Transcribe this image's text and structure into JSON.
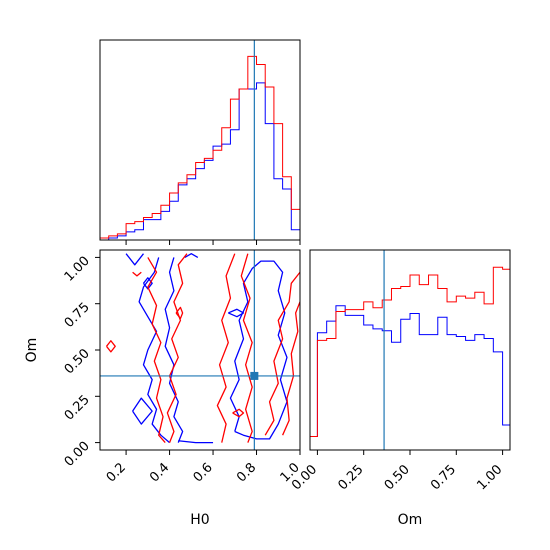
{
  "chart_data": {
    "type": "corner",
    "colors": {
      "run_a": "#0000ff",
      "run_b": "#ff0000",
      "truth": "#1f77b4"
    },
    "truth": {
      "H0": 0.79,
      "Om": 0.36
    },
    "panels": [
      {
        "id": "H0-marginal",
        "type": "histogram",
        "xlim": [
          0.08,
          1.0
        ],
        "bin_edges": [
          0.08,
          0.12,
          0.16,
          0.2,
          0.24,
          0.28,
          0.32,
          0.36,
          0.4,
          0.44,
          0.48,
          0.52,
          0.56,
          0.6,
          0.64,
          0.68,
          0.72,
          0.76,
          0.8,
          0.84,
          0.88,
          0.92,
          0.96,
          1.0
        ],
        "series": [
          {
            "color": "blue",
            "counts": [
              0.0,
              0.01,
              0.02,
              0.04,
              0.05,
              0.1,
              0.1,
              0.14,
              0.19,
              0.27,
              0.3,
              0.35,
              0.39,
              0.46,
              0.47,
              0.54,
              0.74,
              0.74,
              0.77,
              0.57,
              0.3,
              0.25,
              0.05
            ]
          },
          {
            "color": "red",
            "counts": [
              0.01,
              0.02,
              0.03,
              0.08,
              0.09,
              0.11,
              0.13,
              0.17,
              0.23,
              0.28,
              0.32,
              0.38,
              0.4,
              0.44,
              0.55,
              0.69,
              0.74,
              0.9,
              0.86,
              0.75,
              0.57,
              0.31,
              0.15
            ]
          }
        ]
      },
      {
        "id": "Om-marginal",
        "type": "histogram",
        "xlim": [
          -0.04,
          1.04
        ],
        "xticks": [
          "0.00",
          "0.25",
          "0.50",
          "0.75",
          "1.00"
        ],
        "xlabel": "Om",
        "bin_edges": [
          -0.04,
          0.0,
          0.05,
          0.1,
          0.15,
          0.2,
          0.25,
          0.3,
          0.35,
          0.4,
          0.45,
          0.5,
          0.55,
          0.6,
          0.65,
          0.7,
          0.75,
          0.8,
          0.85,
          0.9,
          0.95,
          1.0,
          1.04
        ],
        "series": [
          {
            "color": "blue",
            "counts": [
              0.07,
              0.61,
              0.67,
              0.75,
              0.7,
              0.7,
              0.65,
              0.63,
              0.62,
              0.56,
              0.68,
              0.71,
              0.6,
              0.6,
              0.69,
              0.6,
              0.59,
              0.57,
              0.6,
              0.58,
              0.51,
              0.13
            ]
          },
          {
            "color": "red",
            "counts": [
              0.07,
              0.57,
              0.58,
              0.72,
              0.73,
              0.73,
              0.77,
              0.74,
              0.78,
              0.84,
              0.85,
              0.91,
              0.86,
              0.91,
              0.84,
              0.77,
              0.8,
              0.79,
              0.82,
              0.76,
              0.95,
              0.94
            ]
          }
        ]
      },
      {
        "id": "H0-Om-joint",
        "type": "contour",
        "xlim": [
          0.08,
          1.0
        ],
        "ylim": [
          -0.04,
          1.04
        ],
        "xticks": [
          "0.2",
          "0.4",
          "0.6",
          "0.8",
          "1.0"
        ],
        "yticks": [
          "0.00",
          "0.25",
          "0.50",
          "0.75",
          "1.00"
        ],
        "xlabel": "H0",
        "ylabel": "Om",
        "contours": [
          {
            "color": "blue",
            "paths": [
              [
                [
                  0.35,
                  1.0
                ],
                [
                  0.33,
                  0.92
                ],
                [
                  0.28,
                  0.84
                ],
                [
                  0.26,
                  0.76
                ],
                [
                  0.3,
                  0.68
                ],
                [
                  0.34,
                  0.6
                ],
                [
                  0.3,
                  0.5
                ],
                [
                  0.28,
                  0.42
                ],
                [
                  0.32,
                  0.34
                ],
                [
                  0.3,
                  0.26
                ],
                [
                  0.34,
                  0.18
                ],
                [
                  0.32,
                  0.1
                ],
                [
                  0.36,
                  0.04
                ],
                [
                  0.4,
                  0.0
                ]
              ],
              [
                [
                  0.44,
                  0.0
                ],
                [
                  0.46,
                  0.06
                ],
                [
                  0.42,
                  0.14
                ],
                [
                  0.44,
                  0.22
                ],
                [
                  0.4,
                  0.32
                ],
                [
                  0.42,
                  0.42
                ],
                [
                  0.38,
                  0.52
                ],
                [
                  0.4,
                  0.62
                ],
                [
                  0.38,
                  0.72
                ],
                [
                  0.42,
                  0.82
                ],
                [
                  0.4,
                  0.92
                ],
                [
                  0.42,
                  1.0
                ]
              ],
              [
                [
                  0.7,
                  0.06
                ],
                [
                  0.72,
                  0.14
                ],
                [
                  0.68,
                  0.24
                ],
                [
                  0.72,
                  0.34
                ],
                [
                  0.7,
                  0.44
                ],
                [
                  0.74,
                  0.56
                ],
                [
                  0.72,
                  0.66
                ],
                [
                  0.76,
                  0.76
                ],
                [
                  0.74,
                  0.86
                ],
                [
                  0.78,
                  0.94
                ],
                [
                  0.82,
                  0.98
                ],
                [
                  0.88,
                  0.98
                ],
                [
                  0.92,
                  0.92
                ],
                [
                  0.9,
                  0.82
                ],
                [
                  0.93,
                  0.7
                ],
                [
                  0.9,
                  0.58
                ],
                [
                  0.94,
                  0.46
                ],
                [
                  0.91,
                  0.34
                ],
                [
                  0.94,
                  0.22
                ],
                [
                  0.9,
                  0.1
                ],
                [
                  0.86,
                  0.02
                ],
                [
                  0.8,
                  0.02
                ],
                [
                  0.74,
                  0.04
                ],
                [
                  0.7,
                  0.06
                ]
              ],
              [
                [
                  0.23,
                  0.17
                ],
                [
                  0.27,
                  0.1
                ],
                [
                  0.32,
                  0.17
                ],
                [
                  0.27,
                  0.24
                ],
                [
                  0.23,
                  0.17
                ]
              ],
              [
                [
                  0.2,
                  1.02
                ],
                [
                  0.24,
                  0.96
                ],
                [
                  0.28,
                  1.02
                ]
              ],
              [
                [
                  0.28,
                  0.86
                ],
                [
                  0.3,
                  0.83
                ],
                [
                  0.32,
                  0.86
                ],
                [
                  0.3,
                  0.89
                ],
                [
                  0.28,
                  0.86
                ]
              ],
              [
                [
                  0.67,
                  0.7
                ],
                [
                  0.71,
                  0.68
                ],
                [
                  0.74,
                  0.7
                ],
                [
                  0.71,
                  0.72
                ],
                [
                  0.67,
                  0.7
                ]
              ],
              [
                [
                  0.44,
                  0.01
                ],
                [
                  0.52,
                  0.0
                ],
                [
                  0.6,
                  0.0
                ]
              ],
              [
                [
                  0.47,
                  1.0
                ],
                [
                  0.5,
                  1.02
                ],
                [
                  0.53,
                  1.0
                ]
              ]
            ]
          },
          {
            "color": "red",
            "paths": [
              [
                [
                  0.3,
                  1.0
                ],
                [
                  0.34,
                  0.92
                ],
                [
                  0.3,
                  0.84
                ],
                [
                  0.34,
                  0.74
                ],
                [
                  0.32,
                  0.64
                ],
                [
                  0.36,
                  0.54
                ],
                [
                  0.33,
                  0.44
                ],
                [
                  0.36,
                  0.34
                ],
                [
                  0.34,
                  0.24
                ],
                [
                  0.37,
                  0.14
                ],
                [
                  0.35,
                  0.04
                ],
                [
                  0.38,
                  0.0
                ]
              ],
              [
                [
                  0.4,
                  0.0
                ],
                [
                  0.42,
                  0.06
                ],
                [
                  0.39,
                  0.16
                ],
                [
                  0.43,
                  0.26
                ],
                [
                  0.4,
                  0.36
                ],
                [
                  0.44,
                  0.46
                ],
                [
                  0.41,
                  0.56
                ],
                [
                  0.45,
                  0.66
                ],
                [
                  0.42,
                  0.76
                ],
                [
                  0.46,
                  0.86
                ],
                [
                  0.44,
                  0.96
                ],
                [
                  0.48,
                  1.02
                ]
              ],
              [
                [
                  0.64,
                  0.0
                ],
                [
                  0.66,
                  0.1
                ],
                [
                  0.62,
                  0.2
                ],
                [
                  0.66,
                  0.3
                ],
                [
                  0.63,
                  0.42
                ],
                [
                  0.67,
                  0.54
                ],
                [
                  0.64,
                  0.66
                ],
                [
                  0.68,
                  0.78
                ],
                [
                  0.66,
                  0.9
                ],
                [
                  0.7,
                  1.02
                ]
              ],
              [
                [
                  0.76,
                  1.02
                ],
                [
                  0.73,
                  0.9
                ],
                [
                  0.77,
                  0.78
                ],
                [
                  0.74,
                  0.66
                ],
                [
                  0.78,
                  0.54
                ],
                [
                  0.75,
                  0.42
                ],
                [
                  0.78,
                  0.3
                ],
                [
                  0.75,
                  0.18
                ],
                [
                  0.78,
                  0.06
                ],
                [
                  0.76,
                  0.0
                ]
              ],
              [
                [
                  0.84,
                  0.04
                ],
                [
                  0.88,
                  0.12
                ],
                [
                  0.86,
                  0.22
                ],
                [
                  0.9,
                  0.32
                ],
                [
                  0.88,
                  0.44
                ],
                [
                  0.92,
                  0.56
                ],
                [
                  0.9,
                  0.66
                ],
                [
                  0.95,
                  0.76
                ],
                [
                  0.96,
                  0.86
                ],
                [
                  1.0,
                  0.92
                ]
              ],
              [
                [
                  0.92,
                  0.04
                ],
                [
                  0.95,
                  0.12
                ],
                [
                  0.94,
                  0.24
                ],
                [
                  0.97,
                  0.36
                ],
                [
                  0.96,
                  0.48
                ],
                [
                  0.99,
                  0.6
                ],
                [
                  0.98,
                  0.7
                ],
                [
                  1.0,
                  0.76
                ]
              ],
              [
                [
                  0.11,
                  0.52
                ],
                [
                  0.13,
                  0.49
                ],
                [
                  0.15,
                  0.52
                ],
                [
                  0.13,
                  0.55
                ],
                [
                  0.11,
                  0.52
                ]
              ],
              [
                [
                  0.43,
                  0.7
                ],
                [
                  0.45,
                  0.67
                ],
                [
                  0.46,
                  0.7
                ],
                [
                  0.45,
                  0.73
                ],
                [
                  0.43,
                  0.7
                ]
              ],
              [
                [
                  0.69,
                  0.16
                ],
                [
                  0.72,
                  0.14
                ],
                [
                  0.74,
                  0.16
                ],
                [
                  0.72,
                  0.18
                ],
                [
                  0.69,
                  0.16
                ]
              ],
              [
                [
                  0.23,
                  0.92
                ],
                [
                  0.25,
                  0.9
                ],
                [
                  0.27,
                  0.92
                ]
              ]
            ]
          }
        ]
      }
    ]
  }
}
